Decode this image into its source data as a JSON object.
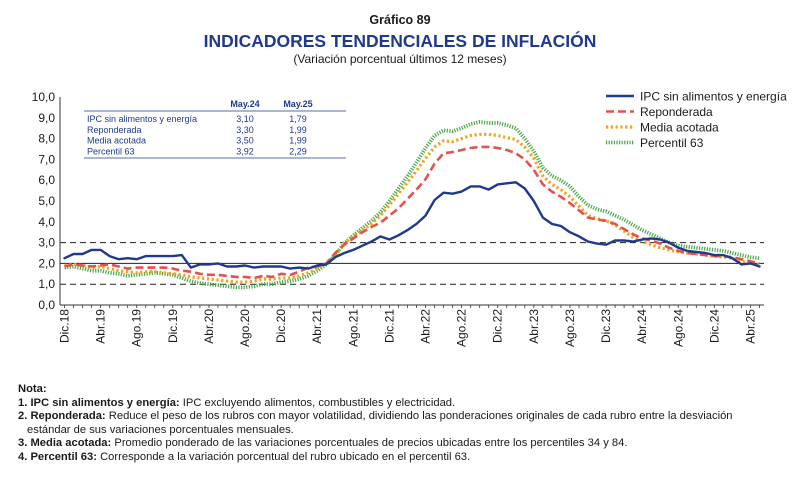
{
  "chart_data": {
    "type": "line",
    "supertitle": "Gráfico 89",
    "title": "INDICADORES TENDENCIALES DE INFLACIÓN",
    "subtitle": "(Variación porcentual últimos 12 meses)",
    "xlabel": "",
    "ylabel": "",
    "ylim": [
      0,
      10
    ],
    "yticks": [
      "0,0",
      "1,0",
      "2,0",
      "3,0",
      "4,0",
      "5,0",
      "6,0",
      "7,0",
      "8,0",
      "9,0",
      "10,0"
    ],
    "x_start": "2018-12",
    "x_ticks": [
      {
        "i": 0,
        "label": "Dic.18"
      },
      {
        "i": 4,
        "label": "Abr.19"
      },
      {
        "i": 8,
        "label": "Ago.19"
      },
      {
        "i": 12,
        "label": "Dic.19"
      },
      {
        "i": 16,
        "label": "Abr.20"
      },
      {
        "i": 20,
        "label": "Ago.20"
      },
      {
        "i": 24,
        "label": "Dic.20"
      },
      {
        "i": 28,
        "label": "Abr.21"
      },
      {
        "i": 32,
        "label": "Ago.21"
      },
      {
        "i": 36,
        "label": "Dic.21"
      },
      {
        "i": 40,
        "label": "Abr.22"
      },
      {
        "i": 44,
        "label": "Ago.22"
      },
      {
        "i": 48,
        "label": "Dic.22"
      },
      {
        "i": 52,
        "label": "Abr.23"
      },
      {
        "i": 56,
        "label": "Ago.23"
      },
      {
        "i": 60,
        "label": "Dic.23"
      },
      {
        "i": 64,
        "label": "Abr.24"
      },
      {
        "i": 68,
        "label": "Ago.24"
      },
      {
        "i": 72,
        "label": "Dic.24"
      },
      {
        "i": 76,
        "label": "Abr.25"
      }
    ],
    "reference_lines": [
      1,
      2,
      3
    ],
    "grid": false,
    "legend_position": "top-right",
    "series": [
      {
        "name": "IPC sin alimentos y energía",
        "color": "#1f3a8c",
        "style": "solid",
        "values": [
          2.25,
          2.45,
          2.45,
          2.65,
          2.65,
          2.35,
          2.2,
          2.25,
          2.2,
          2.35,
          2.35,
          2.35,
          2.35,
          2.4,
          1.8,
          1.95,
          1.95,
          2.0,
          1.85,
          1.85,
          1.9,
          1.8,
          1.85,
          1.85,
          1.85,
          1.75,
          1.8,
          1.75,
          1.9,
          1.95,
          2.3,
          2.5,
          2.65,
          2.85,
          3.05,
          3.3,
          3.15,
          3.35,
          3.6,
          3.9,
          4.3,
          5.05,
          5.4,
          5.35,
          5.45,
          5.7,
          5.7,
          5.55,
          5.8,
          5.85,
          5.9,
          5.6,
          5.0,
          4.2,
          3.9,
          3.8,
          3.5,
          3.3,
          3.05,
          2.95,
          2.9,
          3.1,
          3.1,
          3.05,
          3.15,
          3.2,
          3.15,
          3.0,
          2.75,
          2.6,
          2.55,
          2.5,
          2.4,
          2.4,
          2.25,
          1.95,
          2.0,
          1.85
        ]
      },
      {
        "name": "Reponderada",
        "color": "#e35151",
        "style": "dashed",
        "values": [
          1.85,
          1.95,
          1.9,
          1.85,
          1.9,
          1.95,
          1.85,
          1.75,
          1.8,
          1.8,
          1.8,
          1.8,
          1.75,
          1.65,
          1.6,
          1.5,
          1.45,
          1.45,
          1.4,
          1.35,
          1.35,
          1.3,
          1.4,
          1.35,
          1.5,
          1.45,
          1.6,
          1.8,
          1.85,
          2.0,
          2.5,
          2.9,
          3.2,
          3.5,
          3.75,
          3.95,
          4.3,
          4.65,
          5.1,
          5.55,
          6.05,
          6.8,
          7.3,
          7.35,
          7.45,
          7.55,
          7.6,
          7.6,
          7.55,
          7.45,
          7.3,
          7.0,
          6.5,
          5.8,
          5.45,
          5.2,
          4.9,
          4.55,
          4.2,
          4.1,
          4.05,
          3.9,
          3.65,
          3.4,
          3.2,
          3.1,
          2.95,
          2.75,
          2.6,
          2.5,
          2.45,
          2.4,
          2.35,
          2.35,
          2.3,
          2.2,
          2.1,
          2.0
        ]
      },
      {
        "name": "Media acotada",
        "color": "#f2a21b",
        "style": "dotted",
        "values": [
          1.9,
          1.95,
          1.9,
          1.8,
          1.85,
          1.75,
          1.65,
          1.6,
          1.55,
          1.6,
          1.6,
          1.55,
          1.5,
          1.45,
          1.35,
          1.3,
          1.25,
          1.2,
          1.15,
          1.1,
          1.1,
          1.15,
          1.25,
          1.25,
          1.3,
          1.3,
          1.4,
          1.55,
          1.75,
          2.0,
          2.4,
          3.0,
          3.3,
          3.6,
          3.9,
          4.3,
          4.8,
          5.35,
          5.9,
          6.45,
          7.05,
          7.6,
          7.9,
          7.85,
          8.0,
          8.15,
          8.2,
          8.2,
          8.15,
          8.05,
          7.95,
          7.6,
          7.05,
          6.2,
          5.8,
          5.55,
          5.2,
          4.75,
          4.3,
          4.15,
          4.05,
          3.85,
          3.55,
          3.25,
          3.05,
          2.9,
          2.75,
          2.65,
          2.55,
          2.5,
          2.45,
          2.4,
          2.35,
          2.3,
          2.25,
          2.1,
          2.0,
          1.95
        ]
      },
      {
        "name": "Percentil 63",
        "color": "#48a848",
        "style": "dotted",
        "values": [
          1.8,
          1.85,
          1.75,
          1.65,
          1.65,
          1.55,
          1.5,
          1.4,
          1.45,
          1.5,
          1.55,
          1.5,
          1.45,
          1.3,
          1.15,
          1.05,
          1.0,
          0.95,
          0.9,
          0.85,
          0.85,
          0.9,
          1.0,
          1.0,
          1.1,
          1.15,
          1.25,
          1.4,
          1.65,
          1.95,
          2.4,
          2.95,
          3.35,
          3.7,
          4.05,
          4.45,
          5.0,
          5.6,
          6.2,
          6.85,
          7.55,
          8.15,
          8.4,
          8.35,
          8.5,
          8.7,
          8.8,
          8.75,
          8.75,
          8.65,
          8.5,
          8.0,
          7.4,
          6.6,
          6.2,
          6.0,
          5.7,
          5.2,
          4.8,
          4.6,
          4.5,
          4.3,
          4.1,
          3.85,
          3.6,
          3.4,
          3.2,
          3.0,
          2.85,
          2.8,
          2.75,
          2.7,
          2.65,
          2.6,
          2.5,
          2.4,
          2.3,
          2.25
        ]
      }
    ],
    "inset_table": {
      "columns": [
        "",
        "May.24",
        "May.25"
      ],
      "rows": [
        [
          "IPC sin alimentos y energía",
          "3,10",
          "1,79"
        ],
        [
          "Reponderada",
          "3,30",
          "1,99"
        ],
        [
          "Media acotada",
          "3,50",
          "1,99"
        ],
        [
          "Percentil 63",
          "3,92",
          "2,29"
        ]
      ]
    }
  },
  "notes": {
    "heading": "Nota:",
    "items": [
      {
        "term": "1. IPC sin alimentos y energía:",
        "text": " IPC excluyendo alimentos, combustibles y electricidad."
      },
      {
        "term": "2. Reponderada:",
        "text": " Reduce el peso de los rubros con mayor volatilidad, dividiendo las ponderaciones originales de cada rubro entre la desviación",
        "cont": "estándar de sus variaciones porcentuales mensuales."
      },
      {
        "term": "3. Media acotada:",
        "text": " Promedio ponderado de las variaciones porcentuales de precios ubicadas entre los percentiles 34 y 84."
      },
      {
        "term": "4. Percentil 63:",
        "text": " Corresponde a la variación porcentual del rubro ubicado en el percentil 63."
      }
    ]
  }
}
